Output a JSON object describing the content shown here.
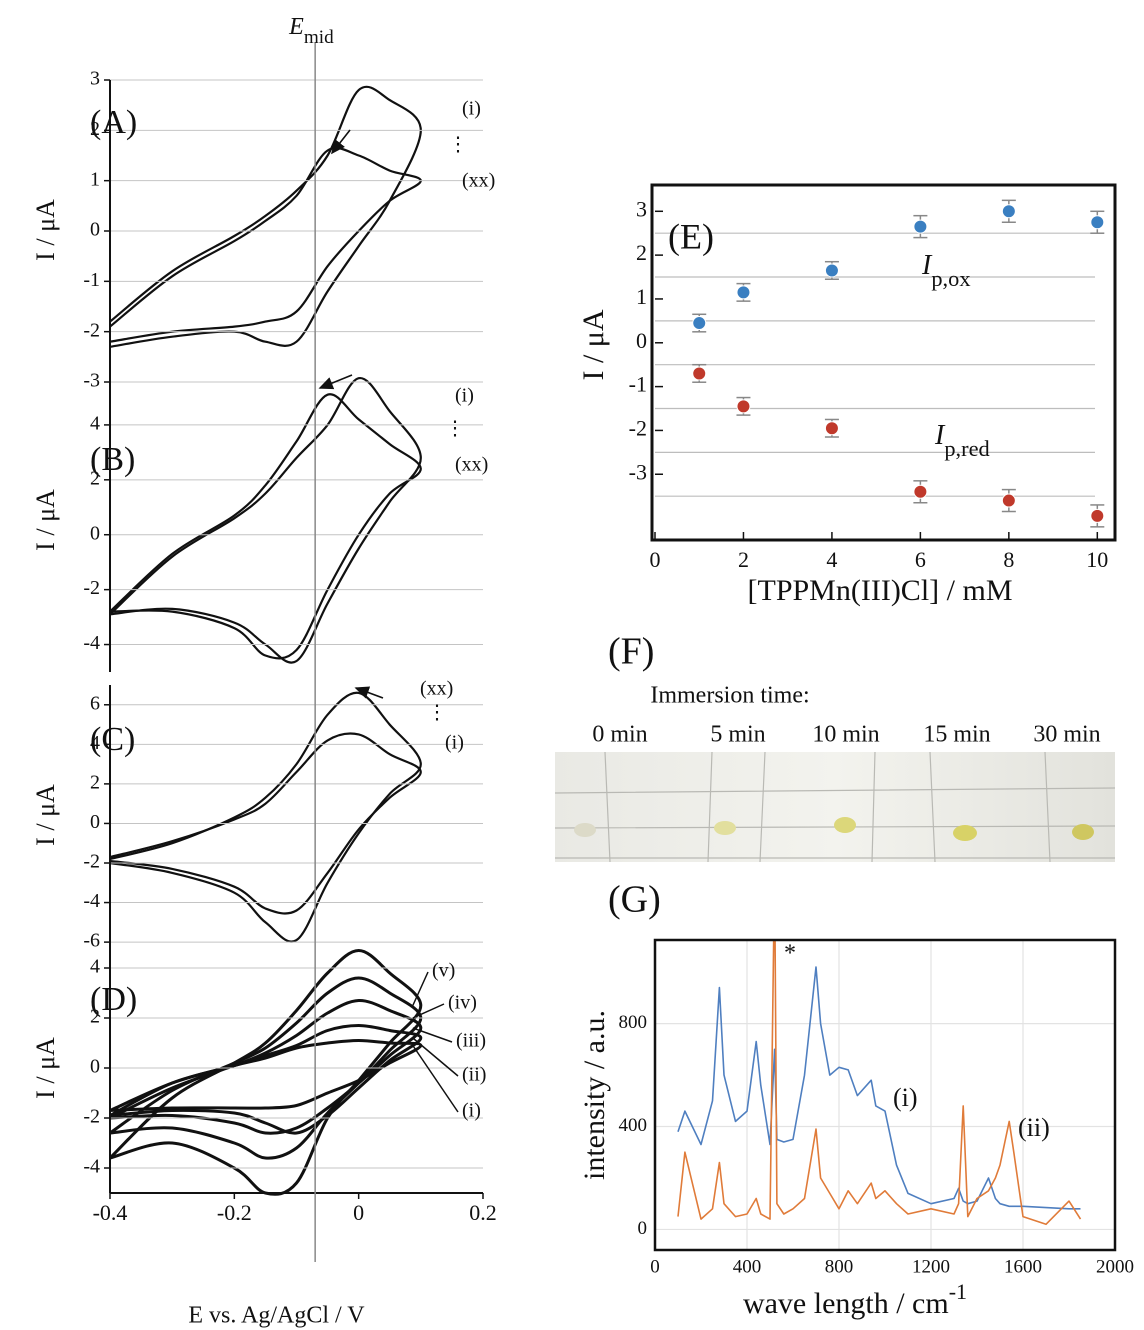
{
  "chart_data": [
    {
      "type": "line",
      "panel_label": "(A)",
      "y_label": "I / μA",
      "grid": true,
      "ellipsis": "⋮",
      "vline": {
        "value": -0.07,
        "symbol": "E",
        "subscript": "mid"
      },
      "x": [
        -0.4,
        -0.3,
        -0.2,
        -0.15,
        -0.1,
        -0.05,
        0,
        0.05,
        0.1,
        0.05,
        0,
        -0.05,
        -0.1,
        -0.15,
        -0.2,
        -0.3,
        -0.4
      ],
      "xlim": [
        -0.4,
        0.2
      ],
      "ylim": [
        -3,
        3
      ],
      "yticks": [
        -3,
        -2,
        -1,
        0,
        1,
        2,
        3
      ],
      "series": [
        {
          "name": "(i)",
          "color": "#111111",
          "values": [
            -1.8,
            -0.8,
            -0.1,
            0.3,
            0.8,
            1.5,
            2.8,
            2.6,
            2.0,
            0.6,
            -0.3,
            -1.2,
            -2.2,
            -2.2,
            -2.0,
            -2.1,
            -2.3
          ]
        },
        {
          "name": "(xx)",
          "color": "#111111",
          "values": [
            -1.9,
            -0.9,
            -0.2,
            0.2,
            0.7,
            1.6,
            1.5,
            1.2,
            1.0,
            0.6,
            0,
            -0.7,
            -1.6,
            -1.8,
            -1.9,
            -2.0,
            -2.2
          ]
        }
      ]
    },
    {
      "type": "line",
      "panel_label": "(B)",
      "y_label": "I / μA",
      "grid": true,
      "ellipsis": "⋮",
      "x": [
        -0.4,
        -0.3,
        -0.2,
        -0.15,
        -0.1,
        -0.05,
        0,
        0.05,
        0.1,
        0.05,
        0,
        -0.05,
        -0.1,
        -0.15,
        -0.2,
        -0.3,
        -0.4
      ],
      "xlim": [
        -0.4,
        0.2
      ],
      "ylim": [
        -5,
        6
      ],
      "yticks": [
        -4,
        -2,
        0,
        2,
        4
      ],
      "series": [
        {
          "name": "(i)",
          "color": "#111111",
          "values": [
            -2.9,
            -0.8,
            0.6,
            1.5,
            2.8,
            4.0,
            5.7,
            4.5,
            2.8,
            1.2,
            -0.5,
            -2.5,
            -4.6,
            -4.0,
            -3.2,
            -2.7,
            -2.9
          ]
        },
        {
          "name": "(xx)",
          "color": "#111111",
          "values": [
            -2.8,
            -0.7,
            0.7,
            1.8,
            3.4,
            5.1,
            4.2,
            3.3,
            2.4,
            1.5,
            0,
            -2.0,
            -4.2,
            -4.4,
            -3.4,
            -2.8,
            -2.8
          ]
        }
      ]
    },
    {
      "type": "line",
      "panel_label": "(C)",
      "y_label": "I / μA",
      "grid": true,
      "ellipsis": "⋮",
      "x": [
        -0.4,
        -0.3,
        -0.2,
        -0.15,
        -0.1,
        -0.05,
        0,
        0.05,
        0.1,
        0.05,
        0,
        -0.05,
        -0.1,
        -0.15,
        -0.2,
        -0.3,
        -0.4
      ],
      "xlim": [
        -0.4,
        0.2
      ],
      "ylim": [
        -6.5,
        7
      ],
      "yticks": [
        -6,
        -4,
        -2,
        0,
        2,
        4,
        6
      ],
      "series": [
        {
          "name": "(xx)",
          "color": "#111111",
          "values": [
            -1.8,
            -1.0,
            0.3,
            1.3,
            3.0,
            5.5,
            6.6,
            5.0,
            3.0,
            1.5,
            -0.5,
            -3.0,
            -5.9,
            -5.0,
            -3.5,
            -2.5,
            -2.0
          ]
        },
        {
          "name": "(i)",
          "color": "#111111",
          "values": [
            -1.7,
            -0.9,
            0.2,
            1.0,
            2.6,
            4.2,
            4.5,
            3.5,
            2.6,
            1.3,
            -0.3,
            -2.5,
            -4.4,
            -4.3,
            -3.2,
            -2.3,
            -1.9
          ]
        }
      ]
    },
    {
      "type": "line",
      "panel_label": "(D)",
      "y_label": "I / μA",
      "grid": true,
      "x_label": "E vs. Ag/AgCl / V",
      "x": [
        -0.4,
        -0.3,
        -0.2,
        -0.15,
        -0.1,
        -0.05,
        0,
        0.05,
        0.1,
        0.05,
        0,
        -0.05,
        -0.1,
        -0.15,
        -0.2,
        -0.3,
        -0.4
      ],
      "xlim": [
        -0.4,
        0.2
      ],
      "xticks": [
        -0.4,
        -0.2,
        0,
        0.2
      ],
      "ylim": [
        -5,
        5
      ],
      "yticks": [
        -4,
        -2,
        0,
        2,
        4
      ],
      "series": [
        {
          "name": "(i)",
          "color": "#111111",
          "values": [
            -1.7,
            -0.6,
            0.1,
            0.4,
            0.8,
            1.0,
            1.1,
            1.0,
            0.9,
            0.2,
            -0.5,
            -1.0,
            -1.5,
            -1.6,
            -1.6,
            -1.6,
            -1.7
          ]
        },
        {
          "name": "(ii)",
          "color": "#111111",
          "values": [
            -1.9,
            -0.6,
            0.1,
            0.5,
            0.9,
            1.5,
            1.7,
            1.5,
            1.2,
            0.3,
            -0.8,
            -1.9,
            -2.6,
            -2.2,
            -1.8,
            -1.7,
            -1.9
          ]
        },
        {
          "name": "(iii)",
          "color": "#111111",
          "values": [
            -2.0,
            -0.8,
            0.1,
            0.6,
            1.3,
            2.2,
            2.7,
            2.3,
            1.6,
            0.5,
            -0.6,
            -1.6,
            -2.4,
            -2.6,
            -2.2,
            -1.9,
            -2.0
          ]
        },
        {
          "name": "(iv)",
          "color": "#111111",
          "values": [
            -2.6,
            -0.9,
            0.2,
            0.8,
            1.8,
            3.0,
            3.6,
            3.0,
            2.0,
            0.7,
            -0.6,
            -1.8,
            -3.2,
            -3.6,
            -3.0,
            -2.4,
            -2.6
          ]
        },
        {
          "name": "(v)",
          "color": "#111111",
          "values": [
            -3.6,
            -1.2,
            0.2,
            1.0,
            2.3,
            3.8,
            4.7,
            3.8,
            2.5,
            1.0,
            -0.5,
            -2.0,
            -4.6,
            -5.0,
            -4.0,
            -3.0,
            -3.6
          ]
        }
      ]
    },
    {
      "type": "scatter",
      "panel_label": "(E)",
      "y_label": "I / μA",
      "x_label": "[TPPMn(III)Cl] / mM",
      "x": [
        1,
        2,
        4,
        6,
        8,
        10
      ],
      "xlim": [
        0,
        10.4
      ],
      "xticks": [
        0,
        2,
        4,
        6,
        8,
        10
      ],
      "ylim": [
        -4.5,
        3.6
      ],
      "yticks": [
        -3,
        -2,
        -1,
        0,
        1,
        2,
        3
      ],
      "minor_grid": [
        -3.5,
        -2.5,
        -1.5,
        -0.5,
        0.5,
        1.5,
        2.5
      ],
      "error_color": "#888888",
      "series": [
        {
          "label": {
            "symbol": "I",
            "subscript": "p,ox"
          },
          "color": "#3a7fc1",
          "values": [
            0.45,
            1.15,
            1.65,
            2.65,
            3.0,
            2.75
          ],
          "errors": [
            0.2,
            0.2,
            0.2,
            0.25,
            0.25,
            0.25
          ]
        },
        {
          "label": {
            "symbol": "I",
            "subscript": "p,red"
          },
          "color": "#c0392b",
          "values": [
            -0.7,
            -1.45,
            -1.95,
            -3.4,
            -3.6,
            -3.95
          ],
          "errors": [
            0.2,
            0.2,
            0.2,
            0.25,
            0.25,
            0.25
          ]
        }
      ]
    },
    {
      "type": "line",
      "panel_label": "(G)",
      "y_label": "intensity / a.u.",
      "x_label": {
        "text": "wave length / cm",
        "superscript": "-1"
      },
      "annotation": "*",
      "grid": true,
      "x": [
        100,
        130,
        200,
        250,
        280,
        300,
        350,
        400,
        440,
        460,
        500,
        520,
        530,
        560,
        600,
        650,
        700,
        720,
        760,
        800,
        840,
        880,
        940,
        960,
        1000,
        1050,
        1100,
        1200,
        1300,
        1320,
        1340,
        1360,
        1400,
        1450,
        1480,
        1500,
        1540,
        1560,
        1600,
        1700,
        1800,
        1850
      ],
      "xlim": [
        0,
        2000
      ],
      "xticks": [
        0,
        400,
        800,
        1200,
        1600,
        2000
      ],
      "ylim": [
        -80,
        1125
      ],
      "yticks": [
        0,
        400,
        800
      ],
      "series": [
        {
          "name": "(i)",
          "color": "#4f7fc0",
          "values": [
            380,
            460,
            330,
            500,
            940,
            600,
            420,
            460,
            730,
            560,
            330,
            700,
            350,
            340,
            350,
            600,
            1020,
            800,
            600,
            630,
            620,
            520,
            580,
            480,
            460,
            250,
            140,
            100,
            120,
            160,
            110,
            100,
            110,
            200,
            120,
            100,
            90,
            90,
            90,
            85,
            80,
            80
          ]
        },
        {
          "name": "(ii)",
          "color": "#e07b39",
          "values": [
            50,
            300,
            40,
            80,
            260,
            100,
            50,
            60,
            120,
            60,
            40,
            1400,
            100,
            60,
            80,
            120,
            390,
            200,
            140,
            80,
            150,
            100,
            180,
            120,
            150,
            100,
            60,
            80,
            60,
            100,
            480,
            50,
            120,
            150,
            200,
            250,
            420,
            300,
            50,
            20,
            110,
            40
          ]
        }
      ]
    }
  ],
  "photo": {
    "panel_label": "(F)",
    "caption": "Immersion time:",
    "times": [
      "0 min",
      "5 min",
      "10 min",
      "15 min",
      "30 min"
    ]
  }
}
